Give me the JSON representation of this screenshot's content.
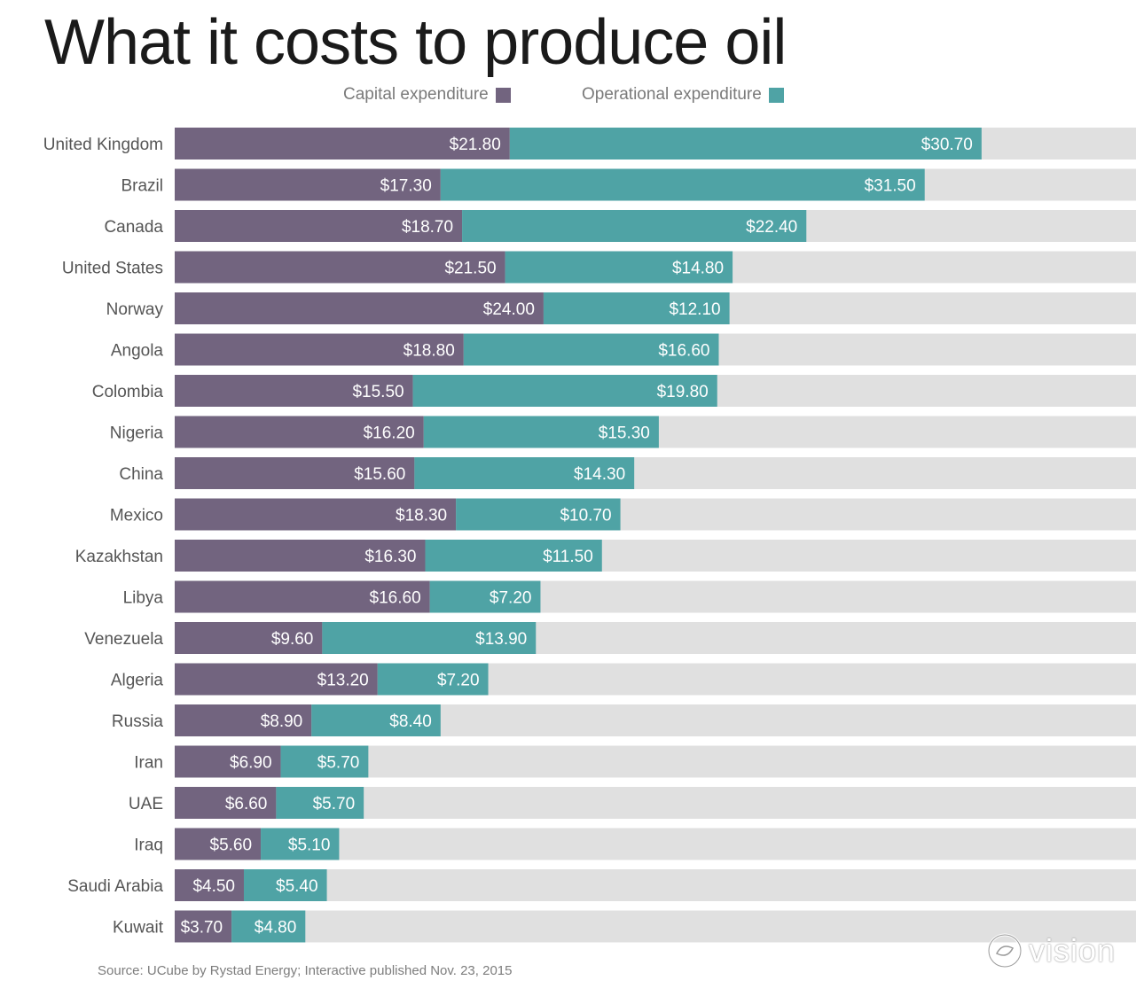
{
  "chart_data": {
    "type": "bar",
    "orientation": "horizontal",
    "stacked": true,
    "title": "What it costs to produce oil",
    "categories": [
      "United Kingdom",
      "Brazil",
      "Canada",
      "United States",
      "Norway",
      "Angola",
      "Colombia",
      "Nigeria",
      "China",
      "Mexico",
      "Kazakhstan",
      "Libya",
      "Venezuela",
      "Algeria",
      "Russia",
      "Iran",
      "UAE",
      "Iraq",
      "Saudi Arabia",
      "Kuwait"
    ],
    "series": [
      {
        "name": "Capital expenditure",
        "color": "#72647f",
        "values": [
          21.8,
          17.3,
          18.7,
          21.5,
          24.0,
          18.8,
          15.5,
          16.2,
          15.6,
          18.3,
          16.3,
          16.6,
          9.6,
          13.2,
          8.9,
          6.9,
          6.6,
          5.6,
          4.5,
          3.7
        ],
        "labels": [
          "$21.80",
          "$17.30",
          "$18.70",
          "$21.50",
          "$24.00",
          "$18.80",
          "$15.50",
          "$16.20",
          "$15.60",
          "$18.30",
          "$16.30",
          "$16.60",
          "$9.60",
          "$13.20",
          "$8.90",
          "$6.90",
          "$6.60",
          "$5.60",
          "$4.50",
          "$3.70"
        ]
      },
      {
        "name": "Operational expenditure",
        "color": "#4fa3a5",
        "values": [
          30.7,
          31.5,
          22.4,
          14.8,
          12.1,
          16.6,
          19.8,
          15.3,
          14.3,
          10.7,
          11.5,
          7.2,
          13.9,
          7.2,
          8.4,
          5.7,
          5.7,
          5.1,
          5.4,
          4.8
        ],
        "labels": [
          "$30.70",
          "$31.50",
          "$22.40",
          "$14.80",
          "$12.10",
          "$16.60",
          "$19.80",
          "$15.30",
          "$14.30",
          "$10.70",
          "$11.50",
          "$7.20",
          "$13.90",
          "$7.20",
          "$8.40",
          "$5.70",
          "$5.70",
          "$5.10",
          "$5.40",
          "$4.80"
        ]
      }
    ],
    "background_color": "#e0e0e0",
    "legend_position": "top"
  },
  "source": "Source: UCube by Rystad Energy; Interactive published Nov. 23, 2015",
  "watermark": "vision"
}
